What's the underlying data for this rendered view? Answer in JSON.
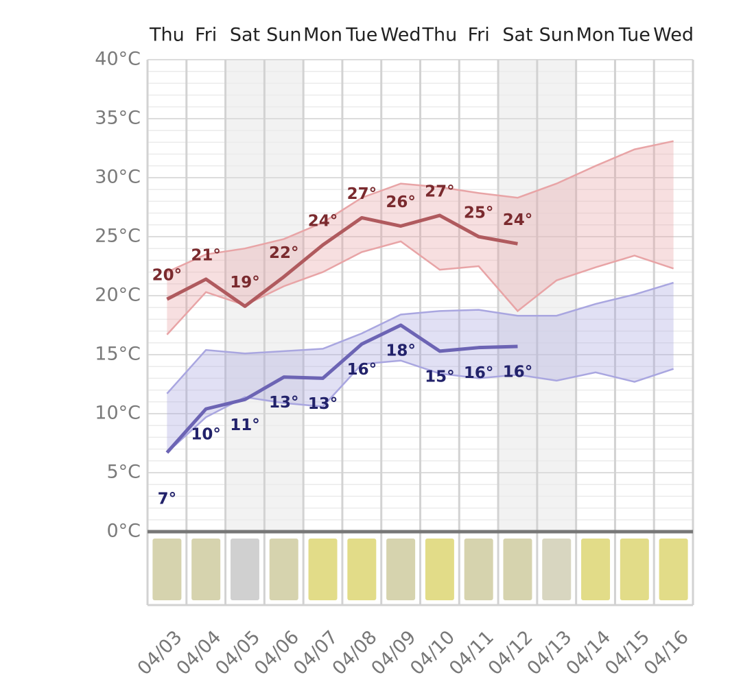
{
  "chart_data": {
    "type": "line",
    "categories": [
      "04/03",
      "04/04",
      "04/05",
      "04/06",
      "04/07",
      "04/08",
      "04/09",
      "04/10",
      "04/11",
      "04/12",
      "04/13",
      "04/14",
      "04/15",
      "04/16"
    ],
    "days": [
      "Thu",
      "Fri",
      "Sat",
      "Sun",
      "Mon",
      "Tue",
      "Wed",
      "Thu",
      "Fri",
      "Sat",
      "Sun",
      "Mon",
      "Tue",
      "Wed"
    ],
    "shaded": [
      false,
      false,
      true,
      true,
      false,
      false,
      false,
      false,
      false,
      true,
      true,
      false,
      false,
      false
    ],
    "ylim": [
      0,
      40
    ],
    "yticks": [
      {
        "value": 0,
        "label": "0°C"
      },
      {
        "value": 5,
        "label": "5°C"
      },
      {
        "value": 10,
        "label": "10°C"
      },
      {
        "value": 15,
        "label": "15°C"
      },
      {
        "value": 20,
        "label": "20°C"
      },
      {
        "value": 25,
        "label": "25°C"
      },
      {
        "value": 30,
        "label": "30°C"
      },
      {
        "value": 35,
        "label": "35°C"
      },
      {
        "value": 40,
        "label": "40°C"
      }
    ],
    "bands": [
      {
        "color": "#e8a4a6",
        "upper": [
          22.0,
          23.5,
          24.0,
          24.8,
          26.2,
          28.3,
          29.5,
          29.2,
          28.7,
          28.3,
          29.5,
          31.0,
          32.4,
          33.1
        ],
        "lower": [
          16.7,
          20.3,
          19.2,
          20.8,
          22.0,
          23.7,
          24.6,
          22.2,
          22.5,
          18.7,
          21.3,
          22.4,
          23.4,
          22.3
        ]
      },
      {
        "color": "#a9a6e0",
        "upper": [
          11.7,
          15.4,
          15.1,
          15.3,
          15.5,
          16.8,
          18.4,
          18.7,
          18.8,
          18.3,
          18.3,
          19.3,
          20.1,
          21.1
        ],
        "lower": [
          6.7,
          9.7,
          11.4,
          10.9,
          10.6,
          14.2,
          14.5,
          13.4,
          13.0,
          13.3,
          12.8,
          13.5,
          12.7,
          13.8
        ]
      }
    ],
    "series": [
      {
        "color": "#b05a5e",
        "label_color": "#7a2a2e",
        "label_side": "above",
        "values": [
          19.7,
          21.4,
          19.1,
          21.6,
          24.3,
          26.6,
          25.9,
          26.8,
          25.0,
          24.4,
          null,
          null,
          null,
          null
        ],
        "value_labels": [
          "20°",
          "21°",
          "19°",
          "22°",
          "24°",
          "27°",
          "26°",
          "27°",
          "25°",
          "24°",
          null,
          null,
          null,
          null
        ]
      },
      {
        "color": "#6c64b4",
        "label_color": "#22226a",
        "label_side": "below",
        "values": [
          6.7,
          10.4,
          11.2,
          13.1,
          13.0,
          15.9,
          17.5,
          15.3,
          15.6,
          15.7,
          null,
          null,
          null,
          null
        ],
        "value_labels": [
          "7°",
          "10°",
          "11°",
          "13°",
          "13°",
          "16°",
          "18°",
          "15°",
          "16°",
          "16°",
          null,
          null,
          null,
          null
        ]
      }
    ],
    "weather_colors": [
      "#d6d3ae",
      "#d6d3ae",
      "#d0d0d0",
      "#d6d3ae",
      "#e2dc88",
      "#e2dc88",
      "#d6d3ae",
      "#e2dc88",
      "#d6d3ae",
      "#d6d3ae",
      "#d8d6c0",
      "#e2dc88",
      "#e2dc88",
      "#e2dc88"
    ],
    "grid": true
  }
}
